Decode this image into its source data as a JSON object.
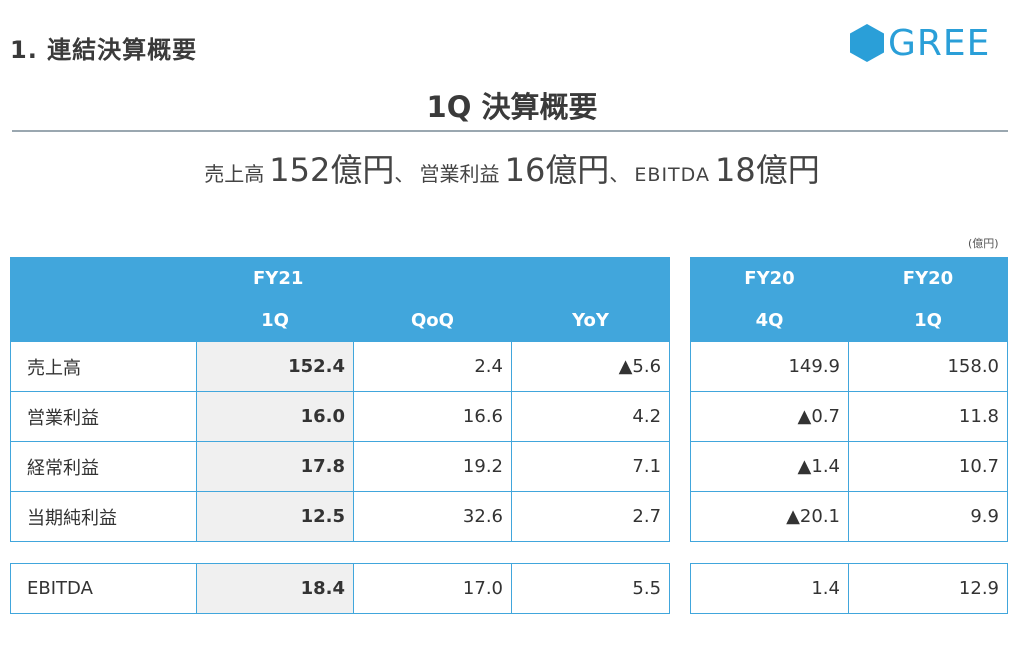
{
  "header": {
    "section_title": "1. 連結決算概要",
    "logo_text": "GREE",
    "brand_color": "#2a9fd8"
  },
  "title": "1Q 決算概要",
  "summary": {
    "sales_label": "売上高",
    "sales_value": "152億円",
    "sep1": "、",
    "op_label": "営業利益",
    "op_value": "16億円",
    "sep2": "、",
    "ebitda_label": "EBITDA",
    "ebitda_value": "18億円"
  },
  "unit": "(億円)",
  "table_left": {
    "fy_header": "FY21",
    "col_1q": "1Q",
    "col_qoq": "QoQ",
    "col_yoy": "YoY",
    "rows": [
      {
        "label": "売上高",
        "q1": "152.4",
        "qoq": "2.4",
        "yoy": "▲5.6"
      },
      {
        "label": "営業利益",
        "q1": "16.0",
        "qoq": "16.6",
        "yoy": "4.2"
      },
      {
        "label": "経常利益",
        "q1": "17.8",
        "qoq": "19.2",
        "yoy": "7.1"
      },
      {
        "label": "当期純利益",
        "q1": "12.5",
        "qoq": "32.6",
        "yoy": "2.7"
      }
    ],
    "ebitda": {
      "label": "EBITDA",
      "q1": "18.4",
      "qoq": "17.0",
      "yoy": "5.5"
    }
  },
  "table_right": {
    "col_a_fy": "FY20",
    "col_a_q": "4Q",
    "col_b_fy": "FY20",
    "col_b_q": "1Q",
    "rows": [
      {
        "a": "149.9",
        "b": "158.0"
      },
      {
        "a": "▲0.7",
        "b": "11.8"
      },
      {
        "a": "▲1.4",
        "b": "10.7"
      },
      {
        "a": "▲20.1",
        "b": "9.9"
      }
    ],
    "ebitda": {
      "a": "1.4",
      "b": "12.9"
    }
  },
  "accent_color": "#41a6dc"
}
